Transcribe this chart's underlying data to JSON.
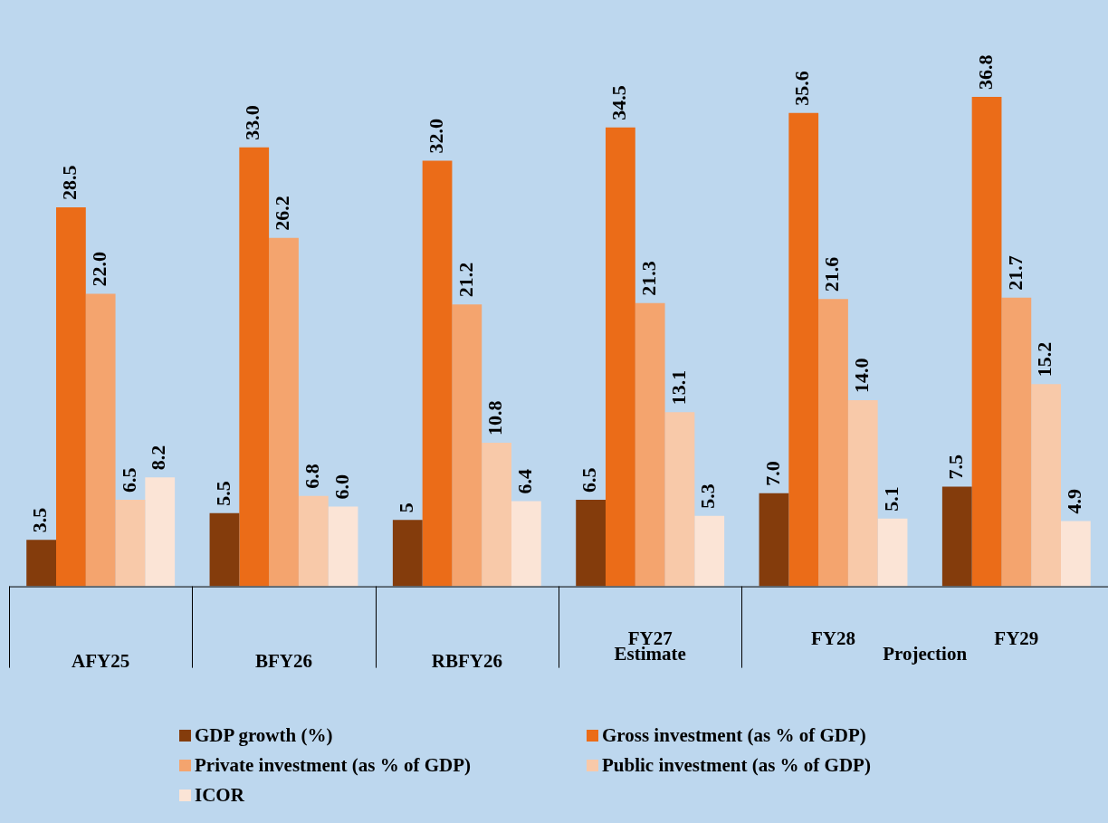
{
  "chart_data": {
    "type": "bar",
    "categories": [
      "AFY25",
      "BFY26",
      "RBFY26",
      "FY27",
      "FY28",
      "FY29"
    ],
    "series": [
      {
        "name": "GDP growth (%)",
        "color": "#843c0c",
        "values": [
          3.5,
          5.5,
          5,
          6.5,
          7.0,
          7.5
        ],
        "value_labels": [
          "3.5",
          "5.5",
          "5",
          "6.5",
          "7.0",
          "7.5"
        ]
      },
      {
        "name": "Gross investment (as % of GDP)",
        "color": "#eb6c18",
        "values": [
          28.5,
          33.0,
          32.0,
          34.5,
          35.6,
          36.8
        ],
        "value_labels": [
          "28.5",
          "33.0",
          "32.0",
          "34.5",
          "35.6",
          "36.8"
        ]
      },
      {
        "name": "Private investment (as % of GDP)",
        "color": "#f4a46e",
        "values": [
          22.0,
          26.2,
          21.2,
          21.3,
          21.6,
          21.7
        ],
        "value_labels": [
          "22.0",
          "26.2",
          "21.2",
          "21.3",
          "21.6",
          "21.7"
        ]
      },
      {
        "name": "Public investment (as % of GDP)",
        "color": "#f8c9a9",
        "values": [
          6.5,
          6.8,
          10.8,
          13.1,
          14.0,
          15.2
        ],
        "value_labels": [
          "6.5",
          "6.8",
          "10.8",
          "13.1",
          "14.0",
          "15.2"
        ]
      },
      {
        "name": "ICOR",
        "color": "#fbe4d6",
        "values": [
          8.2,
          6.0,
          6.4,
          5.3,
          5.1,
          4.9
        ],
        "value_labels": [
          "8.2",
          "6.0",
          "6.4",
          "5.3",
          "5.1",
          "4.9"
        ]
      }
    ],
    "annotations": [
      "Estimate",
      "Projection"
    ],
    "grid": false,
    "legend": "bottom",
    "tick_labels": "x"
  }
}
